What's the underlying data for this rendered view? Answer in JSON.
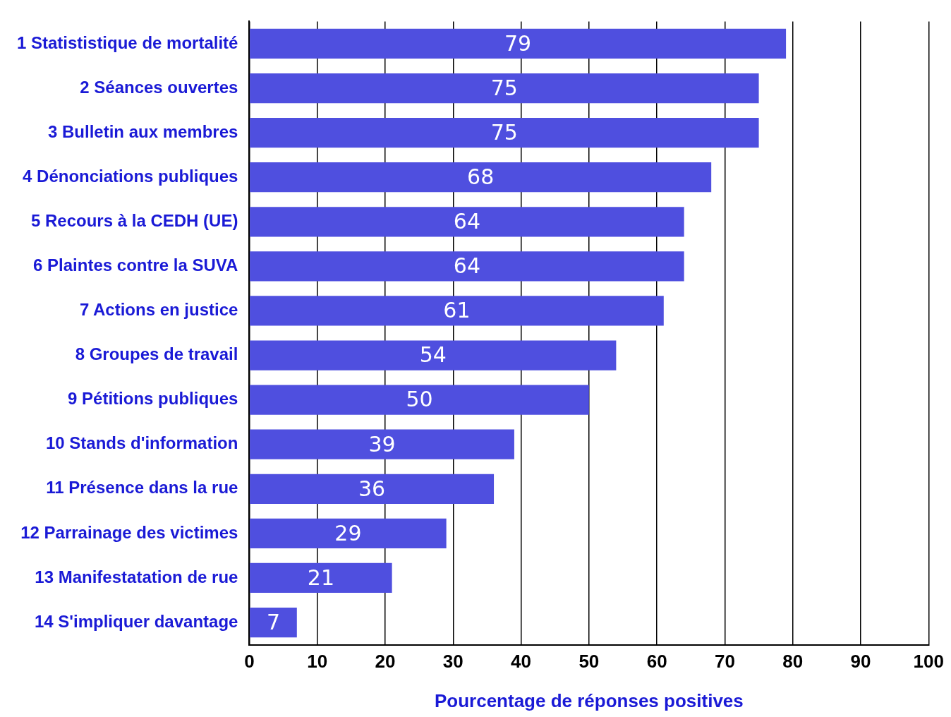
{
  "chart_data": {
    "type": "bar",
    "orientation": "horizontal",
    "categories": [
      "1 Statististique de mortalité",
      "2 Séances ouvertes",
      "3 Bulletin aux membres",
      "4 Dénonciations publiques",
      "5 Recours à la CEDH (UE)",
      "6 Plaintes contre la SUVA",
      "7 Actions en justice",
      "8 Groupes de travail",
      "9 Pétitions publiques",
      "10 Stands d'information",
      "11 Présence dans la rue",
      "12 Parrainage des victimes",
      "13 Manifestatation de rue",
      "14 S'impliquer davantage"
    ],
    "values": [
      79,
      75,
      75,
      68,
      64,
      64,
      61,
      54,
      50,
      39,
      36,
      29,
      21,
      7
    ],
    "color": "#4f4fdf",
    "xlabel": "Pourcentage de réponses positives",
    "xlim": [
      0,
      100
    ],
    "xticks": [
      0,
      10,
      20,
      30,
      40,
      50,
      60,
      70,
      80,
      90,
      100
    ],
    "grid": "x",
    "data_labels": true
  }
}
